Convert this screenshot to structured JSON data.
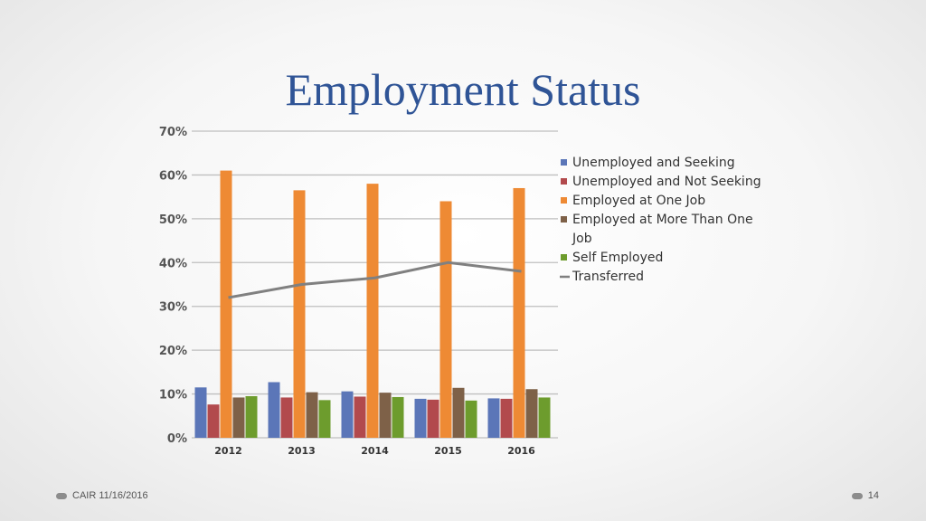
{
  "slide": {
    "title": "Employment Status",
    "footer_left": "CAIR 11/16/2016",
    "page_number": "14"
  },
  "colors": {
    "title": "#2f5496",
    "series": [
      "#5b76b8",
      "#b24a4d",
      "#ee8a34",
      "#7e6148",
      "#6d9c2d"
    ],
    "line": "#808080",
    "grid": "#bfbfbf"
  },
  "chart_data": {
    "type": "bar",
    "title": "",
    "xlabel": "",
    "ylabel": "",
    "categories": [
      "2012",
      "2013",
      "2014",
      "2015",
      "2016"
    ],
    "ylim": [
      0,
      70
    ],
    "yticks": [
      "0%",
      "10%",
      "20%",
      "30%",
      "40%",
      "50%",
      "60%",
      "70%"
    ],
    "grid": true,
    "legend_position": "right",
    "series": [
      {
        "name": "Unemployed and Seeking",
        "type": "bar",
        "values": [
          11.5,
          12.7,
          10.6,
          8.9,
          9.0
        ]
      },
      {
        "name": "Unemployed and Not Seeking",
        "type": "bar",
        "values": [
          7.6,
          9.2,
          9.4,
          8.7,
          8.9
        ]
      },
      {
        "name": "Employed at One Job",
        "type": "bar",
        "values": [
          61.0,
          56.5,
          58.0,
          54.0,
          57.0
        ]
      },
      {
        "name": "Employed at More Than One Job",
        "legend_lines": [
          "Employed at More Than One",
          "Job"
        ],
        "type": "bar",
        "values": [
          9.2,
          10.4,
          10.3,
          11.4,
          11.1
        ]
      },
      {
        "name": "Self Employed",
        "type": "bar",
        "values": [
          9.5,
          8.6,
          9.3,
          8.5,
          9.2
        ]
      },
      {
        "name": "Transferred",
        "type": "line",
        "values": [
          32.0,
          35.0,
          36.5,
          40.0,
          38.0
        ]
      }
    ]
  }
}
